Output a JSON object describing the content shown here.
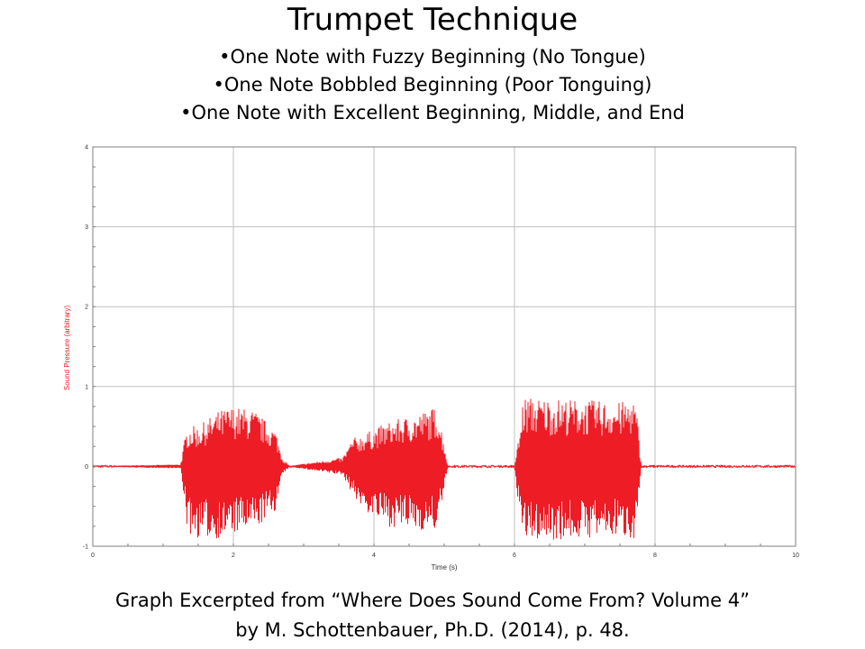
{
  "slide": {
    "title": "Trumpet Technique",
    "bullets": [
      "•One Note with Fuzzy Beginning (No Tongue)",
      "•One Note Bobbled Beginning (Poor Tonguing)",
      "•One Note with Excellent Beginning, Middle, and End"
    ],
    "caption": [
      "Graph Excerpted from “Where Does Sound Come From? Volume 4”",
      "by M. Schottenbauer, Ph.D. (2014), p. 48."
    ]
  },
  "chart_data": {
    "type": "line",
    "xlabel": "Time (s)",
    "ylabel": "Sound Pressure (arbitrary)",
    "xlim": [
      0,
      10
    ],
    "ylim": [
      -1,
      4
    ],
    "xticks": [
      0,
      2,
      4,
      6,
      8,
      10
    ],
    "yticks": [
      -1,
      0,
      1,
      2,
      3,
      4
    ],
    "grid": true,
    "color": "#ee1c25",
    "axis_label_color": "#ee1c25",
    "series": [
      {
        "x": [
          0.0,
          1.25,
          1.3,
          1.35,
          1.5,
          1.8,
          2.0,
          2.3,
          2.6,
          2.7,
          2.8,
          3.5,
          3.55,
          3.7,
          3.85,
          4.2,
          4.6,
          4.9,
          5.0,
          5.05,
          6.0,
          6.1,
          6.12,
          6.3,
          7.0,
          7.5,
          7.7,
          7.75,
          7.8,
          10.0
        ],
        "upper": [
          0.0,
          0.02,
          0.3,
          0.5,
          0.5,
          0.7,
          0.75,
          0.7,
          0.45,
          0.1,
          0.0,
          0.1,
          0.1,
          0.35,
          0.4,
          0.55,
          0.65,
          0.75,
          0.3,
          0.0,
          0.0,
          0.6,
          0.87,
          0.86,
          0.83,
          0.8,
          0.85,
          0.6,
          0.0,
          0.0
        ],
        "lower": [
          0.0,
          -0.02,
          -0.4,
          -0.85,
          -0.9,
          -0.9,
          -0.85,
          -0.8,
          -0.55,
          -0.1,
          0.0,
          -0.1,
          -0.1,
          -0.35,
          -0.55,
          -0.75,
          -0.8,
          -0.8,
          -0.3,
          0.0,
          0.0,
          -0.85,
          -0.95,
          -0.93,
          -0.9,
          -0.88,
          -0.9,
          -0.6,
          0.0,
          0.0
        ]
      }
    ]
  }
}
